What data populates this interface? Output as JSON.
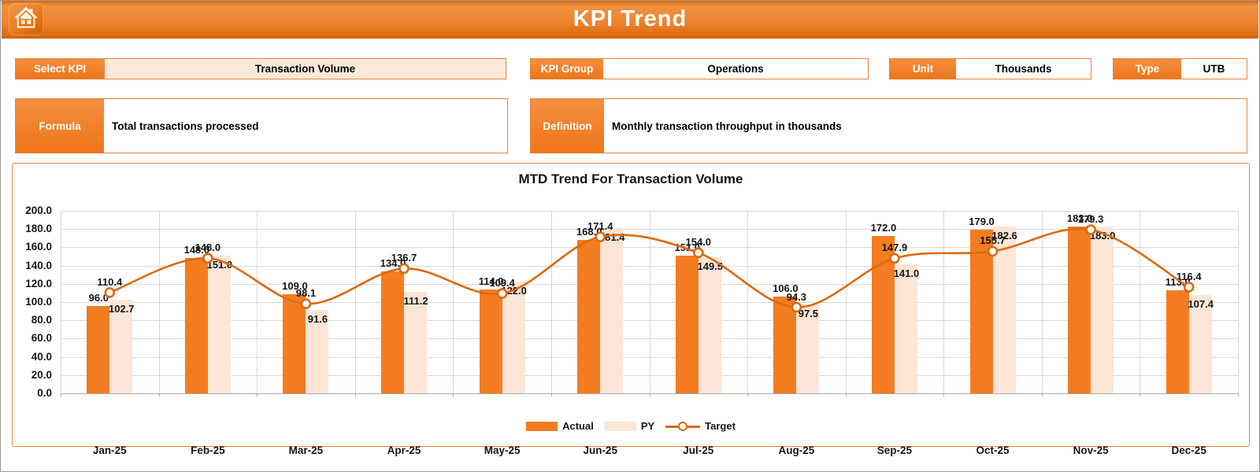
{
  "header": {
    "title": "KPI Trend"
  },
  "fields": {
    "select_kpi": {
      "label": "Select KPI",
      "value": "Transaction Volume"
    },
    "kpi_group": {
      "label": "KPI Group",
      "value": "Operations"
    },
    "unit": {
      "label": "Unit",
      "value": "Thousands"
    },
    "type": {
      "label": "Type",
      "value": "UTB"
    },
    "formula": {
      "label": "Formula",
      "value": "Total transactions processed"
    },
    "definition": {
      "label": "Definition",
      "value": "Monthly transaction throughput in thousands"
    }
  },
  "chart_data": {
    "type": "bar",
    "subtype": "combo-bar-line",
    "title": "MTD Trend For Transaction Volume",
    "categories": [
      "Jan-25",
      "Feb-25",
      "Mar-25",
      "Apr-25",
      "May-25",
      "Jun-25",
      "Jul-25",
      "Aug-25",
      "Sep-25",
      "Oct-25",
      "Nov-25",
      "Dec-25"
    ],
    "series": [
      {
        "name": "Actual",
        "type": "bar",
        "color": "#f47c20",
        "values": [
          96.0,
          148.0,
          109.0,
          134.0,
          114.0,
          168.0,
          151.0,
          106.0,
          172.0,
          179.0,
          183.0,
          113.0
        ]
      },
      {
        "name": "PY",
        "type": "bar",
        "color": "#fbe5d6",
        "values": [
          102.7,
          151.0,
          91.6,
          111.2,
          122.0,
          181.4,
          149.5,
          97.5,
          141.0,
          182.6,
          183.0,
          107.4
        ]
      },
      {
        "name": "Target",
        "type": "line",
        "color": "#dc6a11",
        "values": [
          110.4,
          148.0,
          98.1,
          136.7,
          109.4,
          171.4,
          154.0,
          94.3,
          147.9,
          155.7,
          179.3,
          116.4
        ]
      }
    ],
    "xlabel": "",
    "ylabel": "",
    "ylim": [
      0,
      200
    ],
    "ytick_step": 20,
    "ytick_format": "one-decimal",
    "value_labels": "one-decimal",
    "grid": true,
    "legend_position": "bottom"
  },
  "colors": {
    "accent": "#ee7518",
    "border": "#e8833a",
    "bar_actual": "#f47c20",
    "bar_py": "#fbe5d6",
    "line_target": "#dc6a11",
    "gridline": "#d9d9d9",
    "text_dark": "#161616",
    "peach_fill": "#fde9d9"
  }
}
